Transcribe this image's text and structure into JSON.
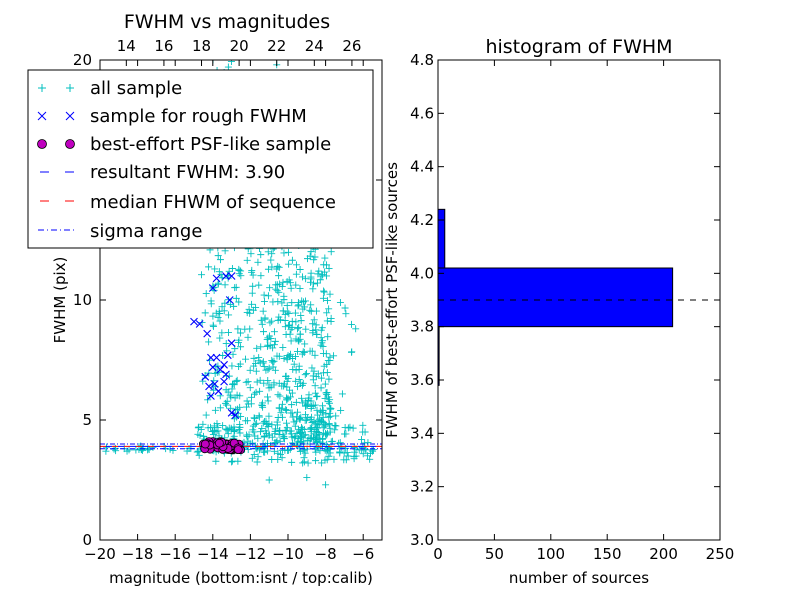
{
  "chart_data": [
    {
      "type": "scatter",
      "title": "FWHM vs magnitudes",
      "xlabel": "magnitude (bottom:isnt / top:calib)",
      "ylabel": "FWHM (pix)",
      "xlim": [
        -20,
        -5
      ],
      "ylim": [
        0,
        20
      ],
      "xticks": [
        -20,
        -18,
        -16,
        -14,
        -12,
        -10,
        -8,
        -6
      ],
      "xtick_labels": [
        "−20",
        "−18",
        "−16",
        "−14",
        "−12",
        "−10",
        "−8",
        "−6"
      ],
      "yticks": [
        0,
        5,
        10,
        15,
        20
      ],
      "ytick_labels": [
        "0",
        "5",
        "10",
        "15",
        "20"
      ],
      "top_axis": {
        "lim": [
          12.6,
          27.6
        ],
        "ticks": [
          14,
          16,
          18,
          20,
          22,
          24,
          26
        ],
        "tick_labels": [
          "14",
          "16",
          "18",
          "20",
          "22",
          "24",
          "26"
        ]
      },
      "colors": {
        "all_sample": "#00bfbf",
        "rough_sample": "#0000ff",
        "psf_fill": "#bf00bf",
        "resultant_line": "#0000ff",
        "median_line": "#ff0000",
        "sigma_line": "#0000ff"
      },
      "resultant_fwhm": 3.9,
      "median_fwhm": 3.9,
      "sigma_range": [
        3.8,
        4.0
      ],
      "series": [
        {
          "name": "sample for rough FWHM",
          "marker": "x",
          "points": [
            [
              -15.0,
              9.1
            ],
            [
              -14.7,
              9.0
            ],
            [
              -14.3,
              8.6
            ],
            [
              -14.0,
              10.5
            ],
            [
              -13.3,
              11.0
            ],
            [
              -13.0,
              11.0
            ],
            [
              -13.8,
              10.9
            ],
            [
              -13.1,
              10.0
            ],
            [
              -13.0,
              8.2
            ],
            [
              -13.2,
              7.7
            ],
            [
              -13.4,
              7.3
            ],
            [
              -14.1,
              7.6
            ],
            [
              -13.8,
              7.6
            ],
            [
              -13.6,
              7.1
            ],
            [
              -14.2,
              6.4
            ],
            [
              -13.7,
              6.2
            ],
            [
              -14.4,
              6.8
            ],
            [
              -13.9,
              6.5
            ],
            [
              -14.1,
              6.0
            ],
            [
              -13.3,
              6.9
            ],
            [
              -13.0,
              5.3
            ],
            [
              -12.8,
              5.2
            ],
            [
              -13.4,
              6.6
            ],
            [
              -14.0,
              7.2
            ]
          ]
        },
        {
          "name": "best-effort PSF-like sample",
          "marker": "o",
          "points": [
            [
              -14.5,
              4.0
            ],
            [
              -14.3,
              4.0
            ],
            [
              -14.1,
              3.9
            ],
            [
              -13.9,
              4.0
            ],
            [
              -13.7,
              4.0
            ],
            [
              -13.5,
              3.9
            ],
            [
              -13.3,
              4.0
            ],
            [
              -13.1,
              4.0
            ],
            [
              -12.9,
              4.0
            ],
            [
              -12.7,
              3.9
            ],
            [
              -14.4,
              3.9
            ],
            [
              -14.0,
              4.1
            ],
            [
              -13.6,
              4.1
            ],
            [
              -13.2,
              3.9
            ],
            [
              -12.8,
              4.0
            ],
            [
              -13.8,
              3.9
            ],
            [
              -14.2,
              4.1
            ],
            [
              -13.4,
              4.0
            ]
          ]
        }
      ],
      "legend": {
        "location": "upper-left",
        "entries": [
          "all sample",
          "sample for rough FWHM",
          "best-effort PSF-like sample",
          "resultant FWHM: 3.90",
          "median FHWM of sequence",
          "sigma range"
        ]
      }
    },
    {
      "type": "bar",
      "orientation": "horizontal",
      "title": "histogram of FWHM",
      "xlabel": "number of sources",
      "ylabel": "FWHM of best-effort PSF-like sources",
      "xlim": [
        0,
        250
      ],
      "ylim": [
        3.0,
        4.8
      ],
      "xticks": [
        0,
        50,
        100,
        150,
        200,
        250
      ],
      "xtick_labels": [
        "0",
        "50",
        "100",
        "150",
        "200",
        "250"
      ],
      "yticks": [
        3.0,
        3.2,
        3.4,
        3.6,
        3.8,
        4.0,
        4.2,
        4.4,
        4.6,
        4.8
      ],
      "ytick_labels": [
        "3.0",
        "3.2",
        "3.4",
        "3.6",
        "3.8",
        "4.0",
        "4.2",
        "4.4",
        "4.6",
        "4.8"
      ],
      "bin_edges": [
        3.58,
        3.8,
        4.02,
        4.24
      ],
      "counts": [
        1,
        208,
        6
      ],
      "bar_color": "#0000ff",
      "reference_line": 3.9
    }
  ]
}
